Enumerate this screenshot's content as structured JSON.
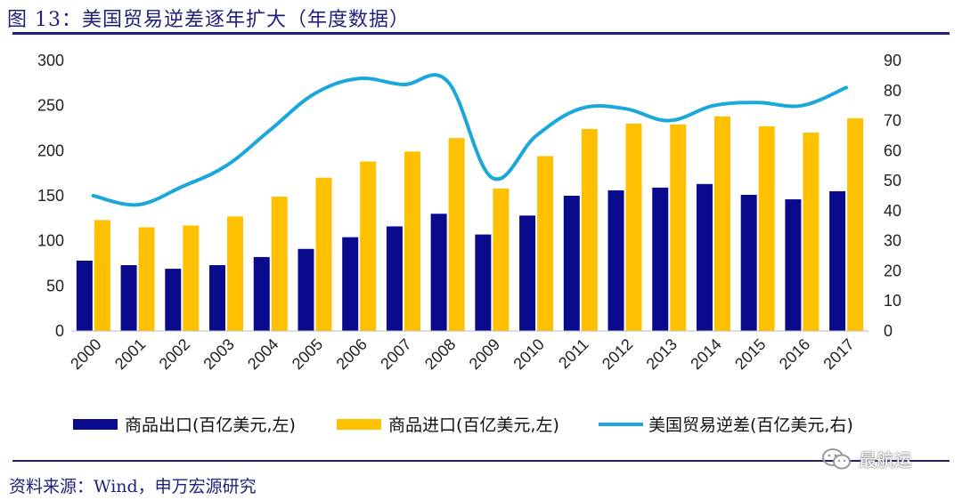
{
  "header": {
    "title": "图 13：美国贸易逆差逐年扩大（年度数据）"
  },
  "footer": {
    "source": "资料来源：Wind，申万宏源研究"
  },
  "watermark": {
    "text": "最航运"
  },
  "colors": {
    "export": "#0a0a8c",
    "import": "#ffc000",
    "deficit": "#1aa7d9",
    "rule": "#1f1f7a"
  },
  "chart_data": {
    "type": "bar",
    "categories": [
      "2000",
      "2001",
      "2002",
      "2003",
      "2004",
      "2005",
      "2006",
      "2007",
      "2008",
      "2009",
      "2010",
      "2011",
      "2012",
      "2013",
      "2014",
      "2015",
      "2016",
      "2017"
    ],
    "series": [
      {
        "name": "商品出口(百亿美元,左)",
        "type": "bar",
        "axis": "left",
        "values": [
          78,
          73,
          69,
          73,
          82,
          91,
          104,
          116,
          130,
          107,
          128,
          150,
          156,
          159,
          163,
          151,
          146,
          155
        ]
      },
      {
        "name": "商品进口(百亿美元,左)",
        "type": "bar",
        "axis": "left",
        "values": [
          123,
          115,
          117,
          127,
          149,
          170,
          188,
          199,
          214,
          158,
          194,
          224,
          230,
          229,
          238,
          227,
          220,
          236
        ]
      },
      {
        "name": "美国贸易逆差(百亿美元,右)",
        "type": "line",
        "axis": "right",
        "values": [
          45,
          42,
          48,
          55,
          67,
          79,
          84,
          82,
          83,
          51,
          65,
          74,
          74,
          70,
          75,
          76,
          75,
          81
        ]
      }
    ],
    "left_axis": {
      "min": 0,
      "max": 300,
      "ticks": [
        "0",
        "50",
        "100",
        "150",
        "200",
        "250",
        "300"
      ]
    },
    "right_axis": {
      "min": 0,
      "max": 90,
      "ticks": [
        "0",
        "10",
        "20",
        "30",
        "40",
        "50",
        "60",
        "70",
        "80",
        "90"
      ]
    },
    "legend_position": "bottom",
    "grid": false
  }
}
